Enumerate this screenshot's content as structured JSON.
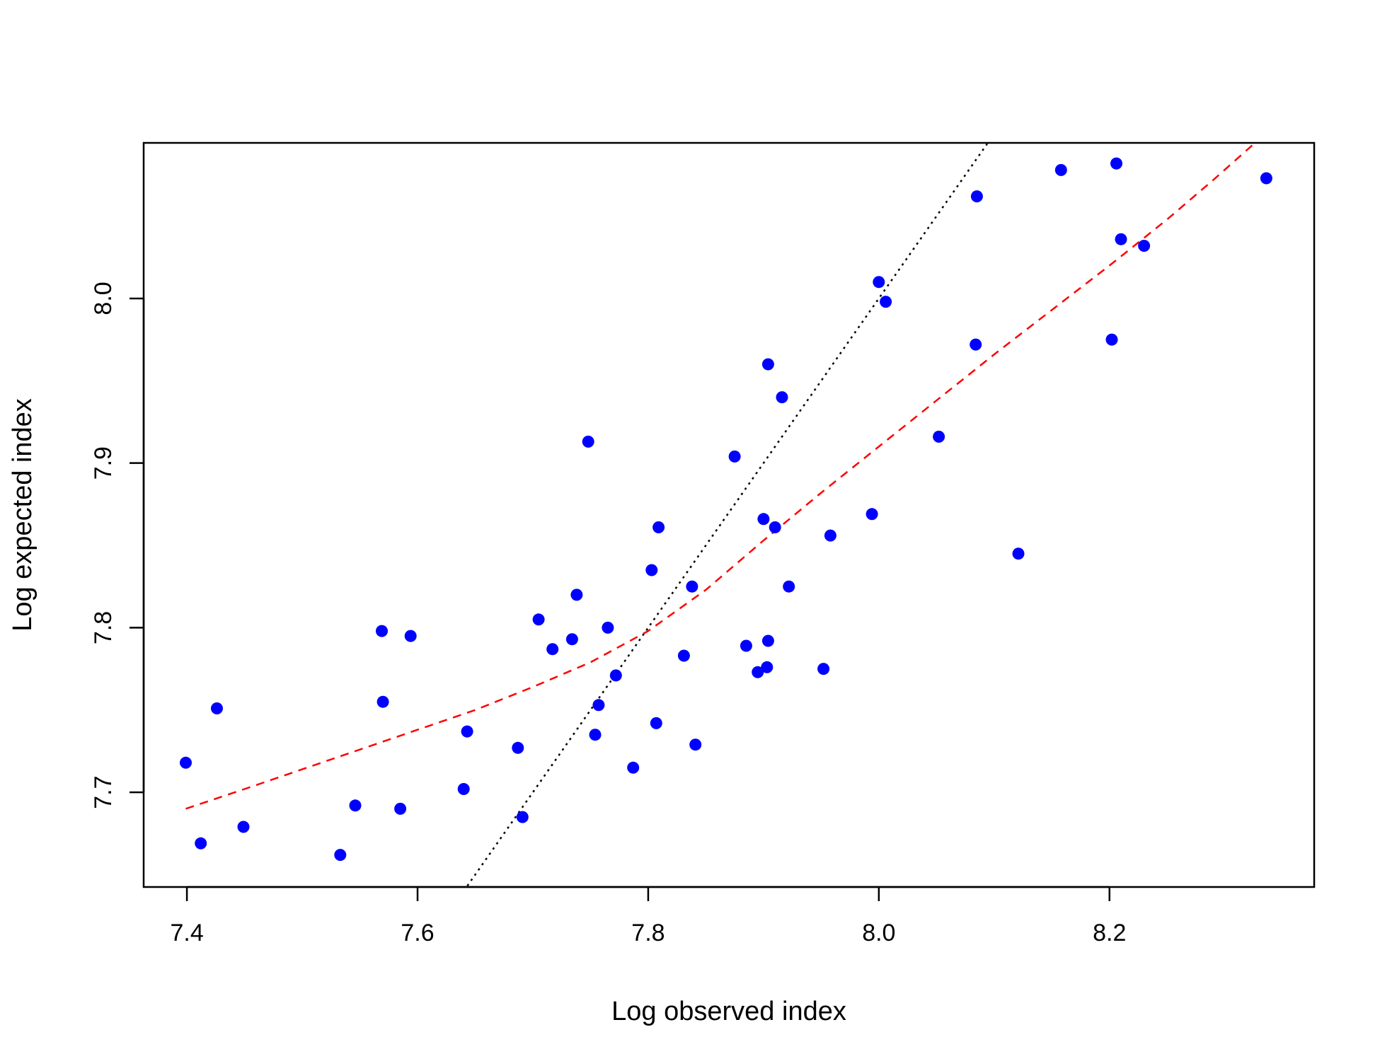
{
  "chart_data": {
    "type": "scatter",
    "xlabel": "Log observed index",
    "ylabel": "Log expected index",
    "xlim": [
      7.3625,
      8.3775
    ],
    "ylim": [
      7.6425,
      8.0945
    ],
    "x_ticks": [
      7.4,
      7.6,
      7.8,
      8.0,
      8.2
    ],
    "x_tick_labels": [
      "7.4",
      "7.6",
      "7.8",
      "8.0",
      "8.2"
    ],
    "y_ticks": [
      7.7,
      7.8,
      7.9,
      8.0
    ],
    "y_tick_labels": [
      "7.7",
      "7.8",
      "7.9",
      "8.0"
    ],
    "grid": false,
    "colors": {
      "points": "#0000FF",
      "identity_line": "#000000",
      "smooth_line": "#FF0000"
    },
    "points": [
      [
        7.399,
        7.718
      ],
      [
        7.412,
        7.669
      ],
      [
        7.426,
        7.751
      ],
      [
        7.449,
        7.679
      ],
      [
        7.533,
        7.662
      ],
      [
        7.546,
        7.692
      ],
      [
        7.569,
        7.798
      ],
      [
        7.57,
        7.755
      ],
      [
        7.585,
        7.69
      ],
      [
        7.594,
        7.795
      ],
      [
        7.64,
        7.702
      ],
      [
        7.643,
        7.737
      ],
      [
        7.687,
        7.727
      ],
      [
        7.691,
        7.685
      ],
      [
        7.705,
        7.805
      ],
      [
        7.717,
        7.787
      ],
      [
        7.734,
        7.793
      ],
      [
        7.738,
        7.82
      ],
      [
        7.748,
        7.913
      ],
      [
        7.754,
        7.735
      ],
      [
        7.757,
        7.753
      ],
      [
        7.765,
        7.8
      ],
      [
        7.772,
        7.771
      ],
      [
        7.787,
        7.715
      ],
      [
        7.803,
        7.835
      ],
      [
        7.807,
        7.742
      ],
      [
        7.809,
        7.861
      ],
      [
        7.831,
        7.783
      ],
      [
        7.838,
        7.825
      ],
      [
        7.841,
        7.729
      ],
      [
        7.875,
        7.904
      ],
      [
        7.885,
        7.789
      ],
      [
        7.895,
        7.773
      ],
      [
        7.9,
        7.866
      ],
      [
        7.903,
        7.776
      ],
      [
        7.904,
        7.792
      ],
      [
        7.904,
        7.96
      ],
      [
        7.91,
        7.861
      ],
      [
        7.916,
        7.94
      ],
      [
        7.922,
        7.825
      ],
      [
        7.952,
        7.775
      ],
      [
        7.958,
        7.856
      ],
      [
        7.994,
        7.869
      ],
      [
        8.0,
        8.01
      ],
      [
        8.006,
        7.998
      ],
      [
        8.052,
        7.916
      ],
      [
        8.084,
        7.972
      ],
      [
        8.085,
        8.062
      ],
      [
        8.121,
        7.845
      ],
      [
        8.158,
        8.078
      ],
      [
        8.202,
        7.975
      ],
      [
        8.206,
        8.082
      ],
      [
        8.21,
        8.036
      ],
      [
        8.23,
        8.032
      ],
      [
        8.336,
        8.073
      ]
    ],
    "identity_line": {
      "style": "dotted",
      "points": [
        [
          7.64,
          7.64
        ],
        [
          8.094,
          8.094
        ]
      ]
    },
    "smooth_line": {
      "style": "dashed",
      "points": [
        [
          7.399,
          7.69
        ],
        [
          7.45,
          7.702
        ],
        [
          7.5,
          7.714
        ],
        [
          7.55,
          7.726
        ],
        [
          7.6,
          7.738
        ],
        [
          7.65,
          7.75
        ],
        [
          7.7,
          7.764
        ],
        [
          7.75,
          7.779
        ],
        [
          7.8,
          7.798
        ],
        [
          7.85,
          7.823
        ],
        [
          7.9,
          7.853
        ],
        [
          7.95,
          7.882
        ],
        [
          8.0,
          7.91
        ],
        [
          8.05,
          7.938
        ],
        [
          8.1,
          7.966
        ],
        [
          8.15,
          7.993
        ],
        [
          8.2,
          8.02
        ],
        [
          8.25,
          8.048
        ],
        [
          8.29,
          8.072
        ],
        [
          8.327,
          8.095
        ]
      ]
    }
  }
}
